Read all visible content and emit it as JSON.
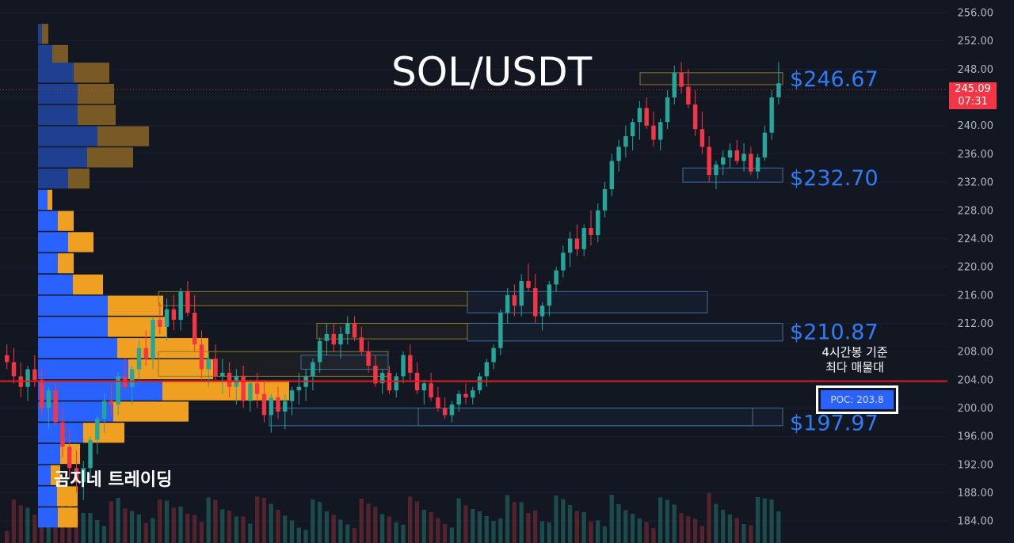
{
  "header": {
    "title": "SOL/USDT"
  },
  "watermark": "곰지네 트레이딩",
  "poc_note": {
    "line1": "4시간봉 기준",
    "line2": "최다 매물대"
  },
  "poc_badge": {
    "label": "POC: 203.8"
  },
  "price_tag": {
    "price": "245.09",
    "countdown": "07:31"
  },
  "colors": {
    "background": "#131722",
    "up": "#26a69a",
    "down": "#f23645",
    "profile_blue": "#2962ff",
    "profile_orange": "#f0a020",
    "level_text": "#2f7cf6",
    "poc_line": "#e01e1e"
  },
  "chart_data": {
    "type": "candlestick",
    "title": "SOL/USDT",
    "timeframe": "4시간봉",
    "y_axis": {
      "ylim": [
        182,
        257
      ],
      "ticks": [
        "256.00",
        "252.00",
        "248.00",
        "244.00",
        "240.00",
        "236.00",
        "232.00",
        "228.00",
        "224.00",
        "220.00",
        "216.00",
        "212.00",
        "208.00",
        "204.00",
        "200.00",
        "196.00",
        "192.00",
        "188.00",
        "184.00"
      ]
    },
    "levels": [
      {
        "label": "$246.67",
        "value": 246.67
      },
      {
        "label": "$232.70",
        "value": 232.7
      },
      {
        "label": "$210.87",
        "value": 210.87
      },
      {
        "label": "$197.97",
        "value": 197.97
      }
    ],
    "poc": 203.8,
    "last_price": 245.09,
    "zones": [
      {
        "low": 245.8,
        "high": 247.5,
        "kind": "yellow"
      },
      {
        "low": 232.0,
        "high": 234.0,
        "kind": "blue"
      },
      {
        "low": 213.5,
        "high": 216.5,
        "kind": "blue"
      },
      {
        "low": 214.5,
        "high": 216.5,
        "kind": "yellow"
      },
      {
        "low": 209.5,
        "high": 212.0,
        "kind": "blue"
      },
      {
        "low": 209.8,
        "high": 212.0,
        "kind": "yellow"
      },
      {
        "low": 204.5,
        "high": 208.0,
        "kind": "yellow"
      },
      {
        "low": 205.5,
        "high": 207.5,
        "kind": "blue"
      },
      {
        "low": 197.5,
        "high": 200.0,
        "kind": "blue"
      }
    ],
    "volume_profile": [
      {
        "price": 253,
        "buy": 5,
        "sell": 8
      },
      {
        "price": 250,
        "buy": 18,
        "sell": 20
      },
      {
        "price": 247.5,
        "buy": 45,
        "sell": 45
      },
      {
        "price": 244.5,
        "buy": 50,
        "sell": 46
      },
      {
        "price": 241.5,
        "buy": 50,
        "sell": 48
      },
      {
        "price": 238.5,
        "buy": 75,
        "sell": 65
      },
      {
        "price": 235.5,
        "buy": 62,
        "sell": 58
      },
      {
        "price": 232.5,
        "buy": 38,
        "sell": 27
      },
      {
        "price": 229.5,
        "buy": 12,
        "sell": 6
      },
      {
        "price": 226.5,
        "buy": 25,
        "sell": 20
      },
      {
        "price": 223.5,
        "buy": 38,
        "sell": 32
      },
      {
        "price": 220.5,
        "buy": 25,
        "sell": 20
      },
      {
        "price": 217.5,
        "buy": 44,
        "sell": 38
      },
      {
        "price": 214.5,
        "buy": 88,
        "sell": 70
      },
      {
        "price": 211.5,
        "buy": 88,
        "sell": 75
      },
      {
        "price": 208.5,
        "buy": 100,
        "sell": 115
      },
      {
        "price": 205.5,
        "buy": 114,
        "sell": 107
      },
      {
        "price": 202.5,
        "buy": 157,
        "sell": 160
      },
      {
        "price": 199.5,
        "buy": 95,
        "sell": 95
      },
      {
        "price": 196.5,
        "buy": 57,
        "sell": 52
      },
      {
        "price": 193.5,
        "buy": 28,
        "sell": 25
      },
      {
        "price": 190.5,
        "buy": 16,
        "sell": 12
      },
      {
        "price": 187.5,
        "buy": 24,
        "sell": 26
      },
      {
        "price": 184.5,
        "buy": 25,
        "sell": 25
      }
    ],
    "candles": [
      [
        207.5,
        209,
        205.5,
        206.5
      ],
      [
        206.5,
        208.5,
        203.5,
        204.5
      ],
      [
        204.5,
        206.5,
        201.5,
        203
      ],
      [
        203,
        206,
        201,
        205.5
      ],
      [
        205.5,
        207.5,
        203,
        204
      ],
      [
        204,
        205.5,
        199,
        200
      ],
      [
        200,
        203,
        197,
        202.5
      ],
      [
        202.5,
        203.5,
        197.5,
        198
      ],
      [
        198,
        200,
        193,
        194.5
      ],
      [
        194.5,
        197,
        190,
        191.5
      ],
      [
        191.5,
        194,
        188,
        189.5
      ],
      [
        189.5,
        192.5,
        187,
        191.5
      ],
      [
        191.5,
        196,
        190,
        195.5
      ],
      [
        195.5,
        199,
        193.5,
        198.5
      ],
      [
        198.5,
        202,
        196.5,
        201
      ],
      [
        201,
        203.5,
        199,
        200.5
      ],
      [
        200.5,
        205,
        199,
        204.5
      ],
      [
        204.5,
        207,
        202.5,
        203
      ],
      [
        203,
        206,
        200.5,
        205.5
      ],
      [
        205.5,
        209.5,
        204,
        208.5
      ],
      [
        208.5,
        211,
        206,
        207
      ],
      [
        207,
        213,
        205.5,
        212.5
      ],
      [
        212.5,
        215,
        210.5,
        211.5
      ],
      [
        211.5,
        215.5,
        209.5,
        214
      ],
      [
        214,
        216,
        211,
        212.5
      ],
      [
        212.5,
        217,
        211,
        216.5
      ],
      [
        216.5,
        218,
        213,
        213.5
      ],
      [
        213.5,
        216,
        208,
        209
      ],
      [
        209,
        211,
        204,
        205.5
      ],
      [
        205.5,
        208,
        203,
        207
      ],
      [
        207,
        209,
        204,
        204.5
      ],
      [
        204.5,
        207,
        202,
        205
      ],
      [
        205,
        206.5,
        201.5,
        203
      ],
      [
        203,
        205.5,
        200.5,
        204.5
      ],
      [
        204.5,
        206,
        200,
        201
      ],
      [
        201,
        204,
        199.5,
        203.5
      ],
      [
        203.5,
        205,
        200,
        202
      ],
      [
        202,
        204,
        198,
        199
      ],
      [
        199,
        202,
        196.5,
        201.5
      ],
      [
        201.5,
        203,
        198.5,
        199.5
      ],
      [
        199.5,
        202,
        197,
        201
      ],
      [
        201,
        203,
        199,
        202.5
      ],
      [
        202.5,
        205,
        200.5,
        203
      ],
      [
        203,
        205.5,
        201,
        204.5
      ],
      [
        204.5,
        207,
        202.5,
        206.5
      ],
      [
        206.5,
        210,
        205,
        209.5
      ],
      [
        209.5,
        212,
        207.5,
        210.5
      ],
      [
        210.5,
        212,
        208,
        209
      ],
      [
        209,
        211.5,
        207,
        210.5
      ],
      [
        210.5,
        213,
        209,
        212
      ],
      [
        212,
        213,
        209.5,
        210
      ],
      [
        210,
        211.5,
        207.5,
        208
      ],
      [
        208,
        209.5,
        205,
        206
      ],
      [
        206,
        207.5,
        203,
        203.5
      ],
      [
        203.5,
        205.5,
        202,
        205
      ],
      [
        205,
        206,
        202,
        202.5
      ],
      [
        202.5,
        205,
        201.5,
        204.5
      ],
      [
        204.5,
        208,
        203.5,
        207.5
      ],
      [
        207.5,
        209,
        204,
        205
      ],
      [
        205,
        206.5,
        202,
        202.5
      ],
      [
        202.5,
        204,
        200.5,
        203.5
      ],
      [
        203.5,
        205,
        201,
        201.5
      ],
      [
        201.5,
        203,
        199.5,
        200
      ],
      [
        200,
        201.5,
        198.5,
        199
      ],
      [
        199,
        201,
        198,
        200.5
      ],
      [
        200.5,
        202.5,
        199.5,
        202
      ],
      [
        202,
        203.5,
        200.5,
        201.5
      ],
      [
        201.5,
        203,
        200.5,
        202.5
      ],
      [
        202.5,
        205,
        202,
        204.5
      ],
      [
        204.5,
        207,
        203,
        206.5
      ],
      [
        206.5,
        209,
        205.5,
        208.5
      ],
      [
        208.5,
        214,
        207.5,
        213.5
      ],
      [
        213.5,
        217,
        212,
        216
      ],
      [
        216,
        217.5,
        213,
        214.5
      ],
      [
        214.5,
        219,
        213,
        218
      ],
      [
        218,
        220.5,
        216.5,
        217
      ],
      [
        217,
        219,
        212,
        213
      ],
      [
        213,
        215,
        211,
        214.5
      ],
      [
        214.5,
        218,
        213,
        217.5
      ],
      [
        217.5,
        220,
        216.5,
        219.5
      ],
      [
        219.5,
        223,
        218.5,
        222
      ],
      [
        222,
        225,
        220,
        224
      ],
      [
        224,
        226,
        221.5,
        222.5
      ],
      [
        222.5,
        226,
        221.5,
        225.5
      ],
      [
        225.5,
        228,
        223,
        224.5
      ],
      [
        224.5,
        229,
        223.5,
        228
      ],
      [
        228,
        232,
        227,
        231
      ],
      [
        231,
        236,
        230,
        235
      ],
      [
        235,
        238,
        233.5,
        237
      ],
      [
        237,
        240,
        235.5,
        238.5
      ],
      [
        238.5,
        241,
        236.5,
        240.5
      ],
      [
        240.5,
        243.5,
        238,
        242.5
      ],
      [
        242.5,
        244,
        239.5,
        240
      ],
      [
        240,
        242,
        237,
        238
      ],
      [
        238,
        241,
        236.5,
        240.5
      ],
      [
        240.5,
        245,
        239.5,
        244
      ],
      [
        244,
        248.5,
        243,
        247.5
      ],
      [
        247.5,
        249,
        244.5,
        245.5
      ],
      [
        245.5,
        248,
        242.5,
        243
      ],
      [
        243,
        245,
        238.5,
        239.5
      ],
      [
        239.5,
        242,
        236,
        237
      ],
      [
        237,
        238.5,
        232,
        233
      ],
      [
        233,
        235,
        231,
        234.5
      ],
      [
        234.5,
        236.5,
        233,
        235.5
      ],
      [
        235.5,
        237.5,
        234,
        236.5
      ],
      [
        236.5,
        238,
        234.5,
        235
      ],
      [
        235,
        237.5,
        233.5,
        236
      ],
      [
        236,
        237,
        233,
        233.5
      ],
      [
        233.5,
        236,
        232.5,
        235.5
      ],
      [
        235.5,
        240,
        235,
        239
      ],
      [
        239,
        245,
        238,
        244
      ],
      [
        244,
        249,
        243,
        246
      ]
    ]
  }
}
